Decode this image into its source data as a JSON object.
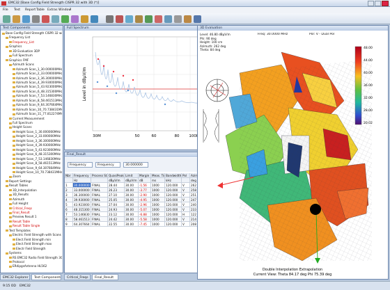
{
  "window": {
    "title": "EMC32 [Base Config Field Strength CISPR 32 with 3D (*)]"
  },
  "menu": [
    "File",
    "Test",
    "Report",
    "Table",
    "Extras",
    "Window",
    "?"
  ],
  "left_panel": {
    "title": "Test Components",
    "tabs": [
      "EMC32 Explorer",
      "Test Components"
    ]
  },
  "tree": [
    {
      "label": "Base Config Field Strength CISPR 32 with 3D (Autoloc)",
      "level": 0
    },
    {
      "label": "Frequency List",
      "level": 1
    },
    {
      "label": "Frequency_List",
      "level": 2,
      "color": "#d00000"
    },
    {
      "label": "Graphics",
      "level": 1
    },
    {
      "label": "3D Evaluation 3DP",
      "level": 2
    },
    {
      "label": "Full Spectrum",
      "level": 2
    },
    {
      "label": "Graphics FMF",
      "level": 1
    },
    {
      "label": "Azimuth Scans",
      "level": 2
    },
    {
      "label": "Azimuth Scan_1_30.000000MHz",
      "level": 3
    },
    {
      "label": "Azimuth Scan_2_33.000000MHz",
      "level": 3
    },
    {
      "label": "Azimuth Scan_3_36.300000MHz",
      "level": 3
    },
    {
      "label": "Azimuth Scan_4_39.930000MHz",
      "level": 3
    },
    {
      "label": "Azimuth Scan_5_43.923000MHz",
      "level": 3
    },
    {
      "label": "Azimuth Scan_6_48.315300MHz",
      "level": 3
    },
    {
      "label": "Azimuth Scan_7_53.146830MHz",
      "level": 3
    },
    {
      "label": "Azimuth Scan_8_58.461513MHz",
      "level": 3
    },
    {
      "label": "Azimuth Scan_9_64.307664MHz",
      "level": 3
    },
    {
      "label": "Azimuth Scan_10_70.738431MHz",
      "level": 3
    },
    {
      "label": "Azimuth Scan_11_77.812274MHz",
      "level": 3
    },
    {
      "label": "Current Measurement",
      "level": 2
    },
    {
      "label": "Full Spectrum",
      "level": 2
    },
    {
      "label": "Height Scans",
      "level": 2
    },
    {
      "label": "Height Scan_1_30.000000MHz",
      "level": 3
    },
    {
      "label": "Height Scan_2_33.000000MHz",
      "level": 3
    },
    {
      "label": "Height Scan_3_36.300000MHz",
      "level": 3
    },
    {
      "label": "Height Scan_4_39.930000MHz",
      "level": 3
    },
    {
      "label": "Height Scan_5_43.923000MHz",
      "level": 3
    },
    {
      "label": "Height Scan_6_48.315300MHz",
      "level": 3
    },
    {
      "label": "Height Scan_7_53.146830MHz",
      "level": 3
    },
    {
      "label": "Height Scan_8_58.461513MHz",
      "level": 3
    },
    {
      "label": "Height Scan_9_64.307664MHz",
      "level": 3
    },
    {
      "label": "Height Scan_10_70.738431MHz",
      "level": 3
    },
    {
      "label": "Zoom",
      "level": 2
    },
    {
      "label": "Report Settings",
      "level": 1
    },
    {
      "label": "Result Tables",
      "level": 1
    },
    {
      "label": "3D_Interpolation",
      "level": 2
    },
    {
      "label": "3D_Results",
      "level": 2
    },
    {
      "label": "Azimuth",
      "level": 2
    },
    {
      "label": "Full Height",
      "level": 2
    },
    {
      "label": "Critical_Freqs",
      "level": 2,
      "color": "#d00000"
    },
    {
      "label": "Final_Result",
      "level": 2,
      "color": "#d00000"
    },
    {
      "label": "Preview Result 1",
      "level": 2
    },
    {
      "label": "Result Table",
      "level": 2,
      "color": "#d00000"
    },
    {
      "label": "Result Table Single",
      "level": 2,
      "color": "#d00000"
    },
    {
      "label": "Test Templates",
      "level": 1
    },
    {
      "label": "Electric Field Strength with Scans 30 to 1G",
      "level": 2
    },
    {
      "label": "Elect.Field Strength min",
      "level": 3
    },
    {
      "label": "Elect.Field Strength max",
      "level": 3
    },
    {
      "label": "Electr Field Strength",
      "level": 3
    },
    {
      "label": "Systems",
      "level": 1
    },
    {
      "label": "RS EMC32 Radio Field Strength 30 to 6F",
      "level": 2
    },
    {
      "label": "Protocol",
      "level": 2
    },
    {
      "label": "ERdipgsAntenna HL562",
      "level": 2
    }
  ],
  "spectrum": {
    "title": "Full Spectrum",
    "ylabel": "Level in dBµV/m",
    "xtick_labels": [
      "30M",
      "50",
      "60",
      "80",
      "100M"
    ]
  },
  "result": {
    "title": "Final_Result",
    "filter": [
      "Frequency",
      "Frequency",
      "30.000000"
    ],
    "columns": [
      "Nbr",
      "Frequency",
      "Process State",
      "QuasiPeak",
      "Limit",
      "Margin",
      "Meas. Time",
      "Bandwidth",
      "Pol",
      "Azimuth"
    ],
    "units": [
      "",
      "Hz",
      "",
      "dBµV/m",
      "dBµV/m",
      "dB",
      "ms",
      "kHz",
      "",
      "deg"
    ],
    "rows": [
      [
        "1",
        "30.000000",
        "FINAL",
        "28.44",
        "30.00",
        "-1.56",
        "1000",
        "120.000",
        "V",
        "262"
      ],
      [
        "2",
        "33.000000",
        "FINAL",
        "26.23",
        "30.00",
        "-3.77",
        "1000",
        "120.000",
        "V",
        "258"
      ],
      [
        "3",
        "36.300000",
        "FINAL",
        "27.10",
        "30.00",
        "-2.90",
        "1000",
        "120.000",
        "V",
        "251"
      ],
      [
        "4",
        "39.930000",
        "FINAL",
        "25.05",
        "30.00",
        "-4.95",
        "1000",
        "120.000",
        "V",
        "247"
      ],
      [
        "5",
        "43.923000",
        "FINAL",
        "27.04",
        "30.00",
        "-2.96",
        "1000",
        "120.000",
        "V",
        "240"
      ],
      [
        "6",
        "48.315300",
        "FINAL",
        "24.93",
        "30.00",
        "-5.07",
        "1000",
        "120.000",
        "V",
        "233"
      ],
      [
        "7",
        "53.146830",
        "FINAL",
        "23.12",
        "30.00",
        "-6.88",
        "1000",
        "120.000",
        "H",
        "122"
      ],
      [
        "8",
        "58.461513",
        "FINAL",
        "24.42",
        "30.00",
        "-5.58",
        "1000",
        "120.000",
        "V",
        "214"
      ],
      [
        "9",
        "64.307664",
        "FINAL",
        "22.55",
        "30.00",
        "-7.45",
        "1000",
        "120.000",
        "V",
        "208"
      ]
    ],
    "tabs": [
      "Critical_Freqs",
      "Final_Result"
    ]
  },
  "eval3d": {
    "title": "3D Evaluation",
    "info": [
      "Level: 46.80 dBµV/m",
      "Phi: 90 deg",
      "Height: 100 cm",
      "Azimuth: 262 deg",
      "Theta: 84 deg"
    ],
    "freq": "Freq: 30.0000 MHz",
    "pol": "Pol: V - Dual Pol",
    "colorbar": [
      "48.00",
      "44.00",
      "40.00",
      "36.00",
      "32.00",
      "28.00",
      "20.02"
    ],
    "footer": [
      "Double Interpolation Extrapolation",
      "Current View:  Theta 84.17 deg   Phi 75.39 deg"
    ]
  },
  "status": [
    "9:15 OD",
    "EMC32"
  ]
}
